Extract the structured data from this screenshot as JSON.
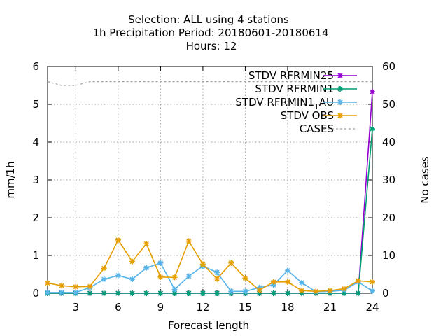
{
  "chart_data": {
    "type": "line",
    "title_lines": [
      "Selection: ALL using     4 stations",
      "1h Precipitation   Period: 20180601-20180614",
      "Hours:  12"
    ],
    "xlabel": "Forecast length",
    "ylabel": "mm/1h",
    "y2label": "No cases",
    "xlim": [
      1,
      24
    ],
    "ylim": [
      0,
      6
    ],
    "y2lim": [
      0,
      60
    ],
    "xticks": [
      3,
      6,
      9,
      12,
      15,
      18,
      21,
      24
    ],
    "yticks": [
      0,
      1,
      2,
      3,
      4,
      5,
      6
    ],
    "y2ticks": [
      0,
      10,
      20,
      30,
      40,
      50,
      60
    ],
    "grid": true,
    "legend_position": "top-right",
    "x": [
      1,
      2,
      3,
      4,
      5,
      6,
      7,
      8,
      9,
      10,
      11,
      12,
      13,
      14,
      15,
      16,
      17,
      18,
      19,
      20,
      21,
      22,
      23,
      24
    ],
    "series": [
      {
        "name": "STDV RFRMIN25",
        "axis": "y1",
        "color": "#9400d3",
        "marker": "star",
        "values": [
          0,
          0,
          0,
          0,
          0,
          0,
          0,
          0,
          0,
          0,
          0,
          0,
          0,
          0,
          0,
          0,
          0,
          0,
          0,
          0,
          0,
          0,
          0,
          5.33
        ]
      },
      {
        "name": "STDV RFRMIN1",
        "axis": "y1",
        "color": "#009e73",
        "marker": "star",
        "values": [
          0,
          0,
          0,
          0,
          0,
          0,
          0,
          0,
          0,
          0,
          0,
          0,
          0,
          0,
          0,
          0,
          0,
          0,
          0,
          0,
          0,
          0,
          0,
          4.35
        ]
      },
      {
        "name": "STDV RFRMIN1",
        "name_sub": "T",
        "name_suffix": "AU",
        "axis": "y1",
        "color": "#56b4e9",
        "marker": "star",
        "values": [
          0.02,
          0.02,
          0.02,
          0.15,
          0.37,
          0.47,
          0.37,
          0.67,
          0.8,
          0.1,
          0.45,
          0.72,
          0.55,
          0.05,
          0.05,
          0.15,
          0.22,
          0.6,
          0.28,
          0.04,
          0.05,
          0.08,
          0.3,
          0.06
        ]
      },
      {
        "name": "STDV OBS",
        "axis": "y1",
        "color": "#e69f00",
        "marker": "star",
        "values": [
          0.27,
          0.2,
          0.17,
          0.18,
          0.66,
          1.41,
          0.84,
          1.31,
          0.43,
          0.42,
          1.38,
          0.77,
          0.38,
          0.8,
          0.4,
          0.08,
          0.3,
          0.3,
          0.07,
          0.05,
          0.07,
          0.12,
          0.33,
          0.3
        ]
      },
      {
        "name": "CASES",
        "axis": "y2",
        "color": "#a0a0a0",
        "dashed": true,
        "values": [
          56,
          55,
          55,
          56,
          56,
          56,
          56,
          56,
          56,
          56,
          56,
          56,
          56,
          56,
          56,
          56,
          56,
          56,
          56,
          56,
          56,
          56,
          56,
          56
        ]
      }
    ]
  }
}
